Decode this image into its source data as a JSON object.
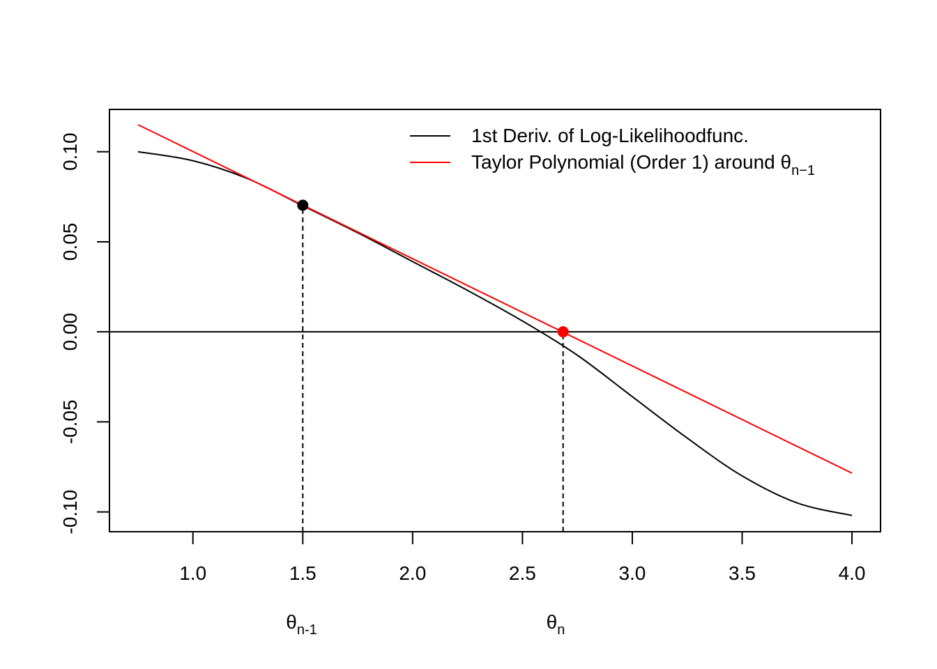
{
  "chart_data": {
    "type": "line",
    "title": "",
    "xlabel": "",
    "ylabel": "",
    "xlim": [
      0.62,
      4.13
    ],
    "ylim": [
      -0.111,
      0.1235
    ],
    "x_ticks": [
      1.0,
      1.5,
      2.0,
      2.5,
      3.0,
      3.5,
      4.0
    ],
    "x_tick_labels": [
      "1.0",
      "1.5",
      "2.0",
      "2.5",
      "3.0",
      "3.5",
      "4.0"
    ],
    "y_ticks": [
      0.1,
      0.05,
      0.0,
      -0.05,
      -0.1
    ],
    "y_tick_labels": [
      "0.10",
      "0.05",
      "0.00",
      "-0.05",
      "-0.10"
    ],
    "grid": false,
    "legend_position": "top-right",
    "colors": {
      "derivative": "#000000",
      "taylor": "#ff0000",
      "axis": "#000000"
    },
    "series": [
      {
        "name": "1st Deriv. of Log-Likelihoodfunc.",
        "color": "#000000",
        "x": [
          0.75,
          1.0,
          1.25,
          1.5,
          1.75,
          2.0,
          2.25,
          2.5,
          2.75,
          3.0,
          3.25,
          3.5,
          3.75,
          4.0
        ],
        "y": [
          0.1,
          0.095,
          0.085,
          0.07,
          0.055,
          0.039,
          0.023,
          0.006,
          -0.013,
          -0.036,
          -0.059,
          -0.08,
          -0.095,
          -0.102
        ]
      },
      {
        "name": "Taylor Polynomial (Order 1) around θ",
        "name_subscript": "n−1",
        "color": "#ff0000",
        "x": [
          0.75,
          4.0
        ],
        "y": [
          0.115,
          -0.0785
        ]
      }
    ],
    "reference_line": {
      "y": 0.0,
      "color": "#000000"
    },
    "points": [
      {
        "x": 1.5,
        "y": 0.0703,
        "color": "#000000"
      },
      {
        "x": 2.685,
        "y": 0.0,
        "color": "#ff0000"
      }
    ],
    "dashed_guides": [
      {
        "x": 1.5,
        "y_to": 0.0703
      },
      {
        "x": 2.685,
        "y_to": 0.0
      }
    ],
    "theta_labels": [
      {
        "x": 1.5,
        "base": "θ",
        "sub": "n-1"
      },
      {
        "x": 2.685,
        "base": "θ",
        "sub": "n"
      }
    ]
  }
}
